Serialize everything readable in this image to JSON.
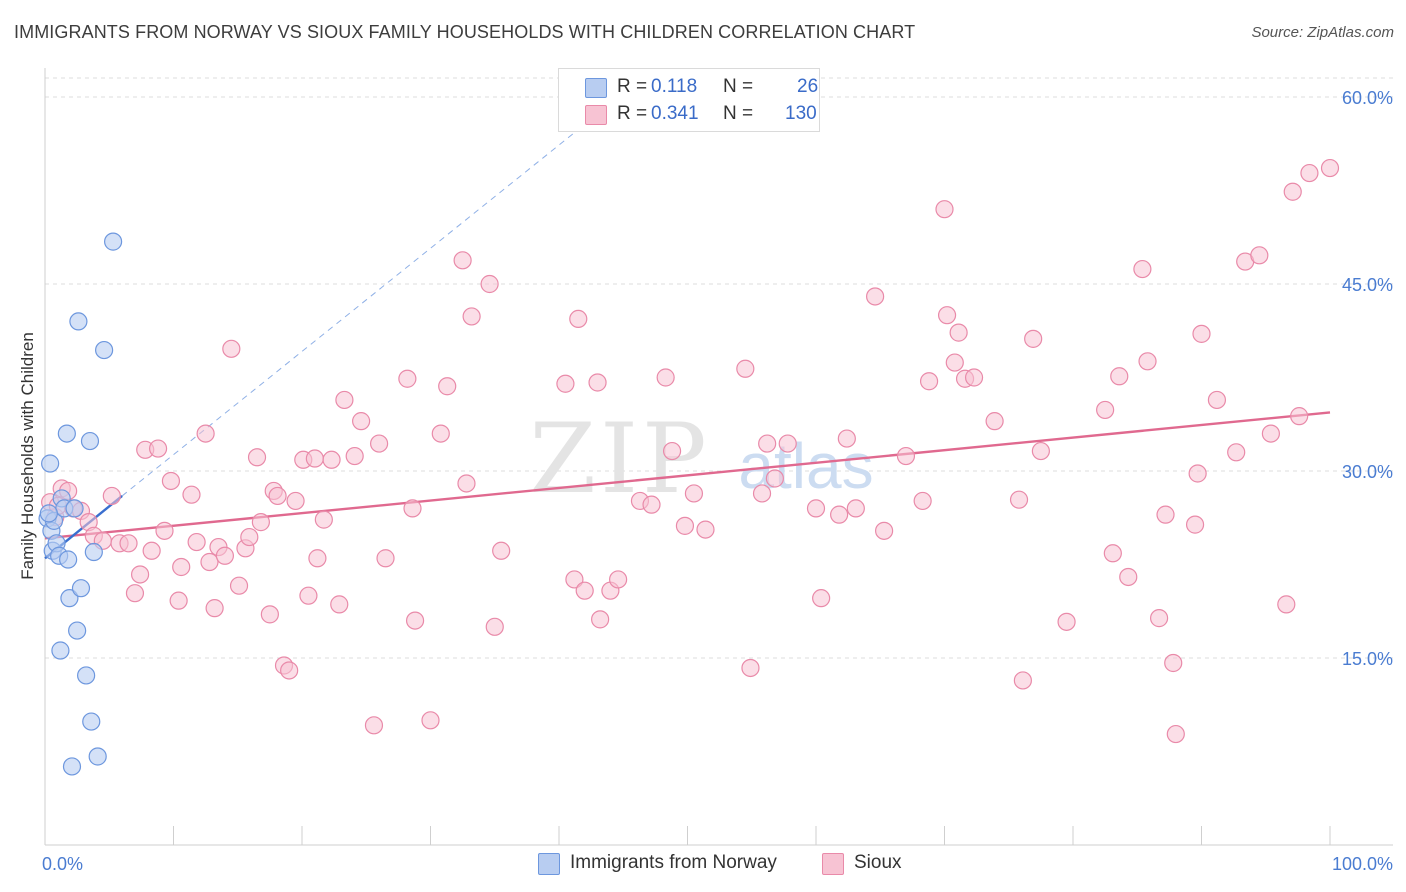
{
  "header": {
    "title": "IMMIGRANTS FROM NORWAY VS SIOUX FAMILY HOUSEHOLDS WITH CHILDREN CORRELATION CHART",
    "source": "Source: ZipAtlas.com"
  },
  "watermark": {
    "zip": "ZIP",
    "atlas": "atlas"
  },
  "legend_top": {
    "r_label": "R =",
    "n_label": "N =",
    "rows": [
      {
        "r": "0.118",
        "n": "26"
      },
      {
        "r": "0.341",
        "n": "130"
      }
    ]
  },
  "colors": {
    "norway_fill": "#b8cdf1",
    "norway_stroke": "#6d97de",
    "norway_line": "#3a6fcf",
    "sioux_fill": "#f7c3d3",
    "sioux_stroke": "#e98aa9",
    "sioux_line": "#e0698f",
    "axis_label": "#4a7cd1",
    "grid": "#dcdcdc"
  },
  "chart_data": {
    "type": "scatter",
    "title": "IMMIGRANTS FROM NORWAY VS SIOUX FAMILY HOUSEHOLDS WITH CHILDREN CORRELATION CHART",
    "xlabel": "",
    "ylabel": "Family Households with Children",
    "xlim": [
      0,
      100
    ],
    "ylim": [
      0,
      60
    ],
    "x_tick_labels": [
      "0.0%",
      "100.0%"
    ],
    "y_ticks": [
      15,
      30,
      45,
      60
    ],
    "y_tick_labels": [
      "15.0%",
      "30.0%",
      "45.0%",
      "60.0%"
    ],
    "legend": [
      "Immigrants from Norway",
      "Sioux"
    ],
    "series": [
      {
        "name": "Immigrants from Norway",
        "r": 0.118,
        "n": 26,
        "trend": {
          "x": [
            0,
            6
          ],
          "y": [
            23.0,
            28.0
          ]
        },
        "trend_extended": {
          "x": [
            6,
            42
          ],
          "y": [
            28.0,
            57.8
          ]
        },
        "points": [
          [
            0.2,
            26.2
          ],
          [
            0.4,
            30.6
          ],
          [
            0.5,
            25.2
          ],
          [
            0.6,
            23.6
          ],
          [
            0.7,
            26.0
          ],
          [
            0.9,
            24.2
          ],
          [
            1.1,
            23.2
          ],
          [
            1.2,
            15.6
          ],
          [
            1.3,
            27.8
          ],
          [
            1.5,
            27.0
          ],
          [
            1.7,
            33.0
          ],
          [
            1.8,
            22.9
          ],
          [
            1.9,
            19.8
          ],
          [
            2.1,
            6.3
          ],
          [
            2.3,
            27.0
          ],
          [
            2.5,
            17.2
          ],
          [
            2.6,
            42.0
          ],
          [
            2.8,
            20.6
          ],
          [
            3.2,
            13.6
          ],
          [
            3.5,
            32.4
          ],
          [
            3.6,
            9.9
          ],
          [
            3.8,
            23.5
          ],
          [
            4.1,
            7.1
          ],
          [
            4.6,
            39.7
          ],
          [
            5.3,
            48.4
          ],
          [
            0.3,
            26.6
          ]
        ]
      },
      {
        "name": "Sioux",
        "r": 0.341,
        "n": 130,
        "trend": {
          "x": [
            0,
            100
          ],
          "y": [
            24.6,
            34.7
          ]
        },
        "points": [
          [
            0.4,
            27.5
          ],
          [
            0.8,
            26.3
          ],
          [
            1.0,
            27.2
          ],
          [
            1.3,
            28.6
          ],
          [
            1.8,
            28.4
          ],
          [
            2.2,
            27.0
          ],
          [
            2.8,
            26.8
          ],
          [
            3.4,
            25.9
          ],
          [
            3.8,
            24.8
          ],
          [
            4.5,
            24.4
          ],
          [
            5.2,
            28.0
          ],
          [
            5.8,
            24.2
          ],
          [
            6.5,
            24.2
          ],
          [
            7.0,
            20.2
          ],
          [
            7.4,
            21.7
          ],
          [
            7.8,
            31.7
          ],
          [
            8.3,
            23.6
          ],
          [
            8.8,
            31.8
          ],
          [
            9.3,
            25.2
          ],
          [
            9.8,
            29.2
          ],
          [
            10.4,
            19.6
          ],
          [
            10.6,
            22.3
          ],
          [
            11.4,
            28.1
          ],
          [
            11.8,
            24.3
          ],
          [
            12.5,
            33.0
          ],
          [
            12.8,
            22.7
          ],
          [
            13.2,
            19.0
          ],
          [
            13.5,
            23.9
          ],
          [
            14.0,
            23.2
          ],
          [
            14.5,
            39.8
          ],
          [
            15.1,
            20.8
          ],
          [
            15.6,
            23.8
          ],
          [
            15.9,
            24.7
          ],
          [
            16.5,
            31.1
          ],
          [
            16.8,
            25.9
          ],
          [
            17.5,
            18.5
          ],
          [
            17.8,
            28.4
          ],
          [
            18.1,
            28.0
          ],
          [
            18.6,
            14.4
          ],
          [
            19.0,
            14.0
          ],
          [
            19.5,
            27.6
          ],
          [
            20.1,
            30.9
          ],
          [
            20.5,
            20.0
          ],
          [
            21.0,
            31.0
          ],
          [
            21.2,
            23.0
          ],
          [
            21.7,
            26.1
          ],
          [
            22.3,
            30.9
          ],
          [
            22.9,
            19.3
          ],
          [
            23.3,
            35.7
          ],
          [
            24.1,
            31.2
          ],
          [
            24.6,
            34.0
          ],
          [
            25.6,
            9.6
          ],
          [
            26.0,
            32.2
          ],
          [
            26.5,
            23.0
          ],
          [
            28.2,
            37.4
          ],
          [
            28.6,
            27.0
          ],
          [
            28.8,
            18.0
          ],
          [
            30.0,
            10.0
          ],
          [
            30.8,
            33.0
          ],
          [
            31.3,
            36.8
          ],
          [
            32.5,
            46.9
          ],
          [
            32.8,
            29.0
          ],
          [
            33.2,
            42.4
          ],
          [
            34.6,
            45.0
          ],
          [
            35.0,
            17.5
          ],
          [
            35.5,
            23.6
          ],
          [
            40.5,
            37.0
          ],
          [
            41.2,
            21.3
          ],
          [
            41.5,
            42.2
          ],
          [
            42.0,
            20.4
          ],
          [
            43.0,
            37.1
          ],
          [
            43.2,
            18.1
          ],
          [
            44.0,
            20.4
          ],
          [
            44.6,
            21.3
          ],
          [
            46.3,
            27.6
          ],
          [
            47.2,
            27.3
          ],
          [
            48.3,
            37.5
          ],
          [
            48.8,
            31.6
          ],
          [
            49.8,
            25.6
          ],
          [
            50.5,
            28.2
          ],
          [
            51.4,
            25.3
          ],
          [
            54.5,
            38.2
          ],
          [
            54.9,
            14.2
          ],
          [
            55.8,
            28.2
          ],
          [
            56.2,
            32.2
          ],
          [
            56.8,
            29.4
          ],
          [
            57.8,
            32.2
          ],
          [
            60.0,
            27.0
          ],
          [
            60.4,
            19.8
          ],
          [
            61.8,
            26.5
          ],
          [
            62.4,
            32.6
          ],
          [
            63.1,
            27.0
          ],
          [
            64.6,
            44.0
          ],
          [
            65.3,
            25.2
          ],
          [
            67.0,
            31.2
          ],
          [
            68.3,
            27.6
          ],
          [
            68.8,
            37.2
          ],
          [
            70.0,
            51.0
          ],
          [
            70.2,
            42.5
          ],
          [
            70.8,
            38.7
          ],
          [
            71.1,
            41.1
          ],
          [
            71.6,
            37.4
          ],
          [
            72.3,
            37.5
          ],
          [
            73.9,
            34.0
          ],
          [
            75.8,
            27.7
          ],
          [
            76.1,
            13.2
          ],
          [
            76.9,
            40.6
          ],
          [
            77.5,
            31.6
          ],
          [
            79.5,
            17.9
          ],
          [
            82.5,
            34.9
          ],
          [
            83.1,
            23.4
          ],
          [
            83.6,
            37.6
          ],
          [
            84.3,
            21.5
          ],
          [
            85.4,
            46.2
          ],
          [
            85.8,
            38.8
          ],
          [
            86.7,
            18.2
          ],
          [
            87.2,
            26.5
          ],
          [
            87.8,
            14.6
          ],
          [
            88.0,
            8.9
          ],
          [
            89.5,
            25.7
          ],
          [
            89.7,
            29.8
          ],
          [
            90.0,
            41.0
          ],
          [
            91.2,
            35.7
          ],
          [
            92.7,
            31.5
          ],
          [
            93.4,
            46.8
          ],
          [
            94.5,
            47.3
          ],
          [
            95.4,
            33.0
          ],
          [
            96.6,
            19.3
          ],
          [
            97.1,
            52.4
          ],
          [
            97.6,
            34.4
          ],
          [
            98.4,
            53.9
          ],
          [
            100.0,
            54.3
          ]
        ]
      }
    ]
  }
}
